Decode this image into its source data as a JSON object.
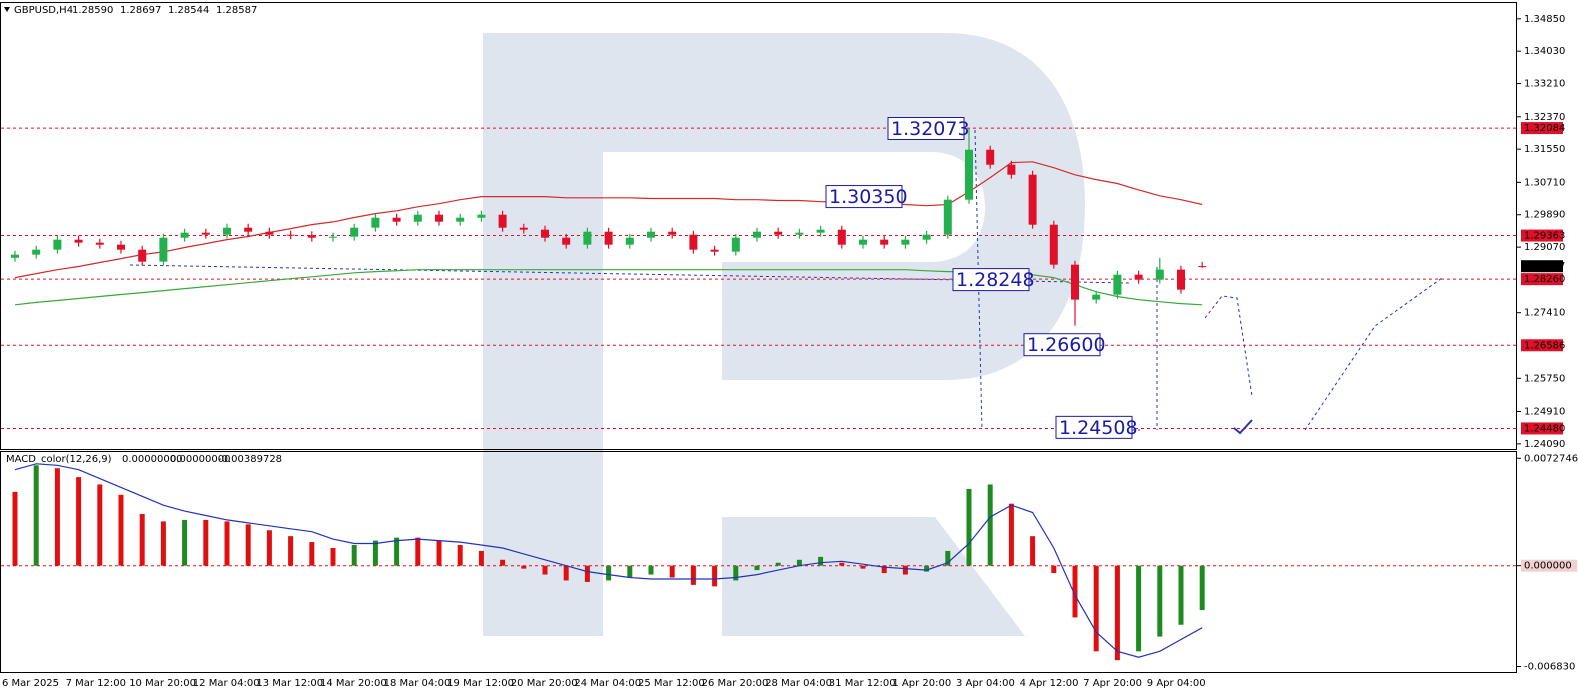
{
  "chart_data": [
    {
      "type": "candlestick",
      "title": "GBPUSD,H4",
      "header_values": [
        "1.28590",
        "1.28697",
        "1.28544",
        "1.28587"
      ],
      "categories": [
        "6 Mar 2025",
        null,
        null,
        "7 Mar 12:00",
        null,
        null,
        "10 Mar 20:00",
        null,
        null,
        "12 Mar 04:00",
        null,
        null,
        "13 Mar 12:00",
        null,
        null,
        "14 Mar 20:00",
        null,
        null,
        "18 Mar 04:00",
        null,
        null,
        "19 Mar 12:00",
        null,
        null,
        "20 Mar 20:00",
        null,
        null,
        "24 Mar 04:00",
        null,
        null,
        "25 Mar 12:00",
        null,
        null,
        "26 Mar 20:00",
        null,
        null,
        "28 Mar 04:00",
        null,
        null,
        "31 Mar 12:00",
        null,
        null,
        "1 Apr 20:00",
        null,
        null,
        "3 Apr 04:00",
        null,
        null,
        "4 Apr 12:00",
        null,
        null,
        "7 Apr 20:00",
        null,
        null,
        "9 Apr 04:00",
        null,
        null
      ],
      "open": [
        1.288,
        1.28879,
        1.29006,
        1.29259,
        1.29183,
        1.29132,
        1.29006,
        1.28702,
        1.29309,
        1.29436,
        1.29385,
        1.29562,
        1.29461,
        1.29385,
        1.2937,
        1.29309,
        1.29335,
        1.29562,
        1.29815,
        1.29714,
        1.29891,
        1.29714,
        1.29815,
        1.29891,
        1.29562,
        1.29512,
        1.29309,
        1.29132,
        1.29461,
        1.29132,
        1.29309,
        1.29461,
        1.29385,
        1.29006,
        1.28955,
        1.29309,
        1.29461,
        1.29385,
        1.29436,
        1.29512,
        1.29132,
        1.29259,
        1.29132,
        1.29259,
        1.29385,
        1.30271,
        1.31536,
        1.31156,
        1.30903,
        1.29638,
        1.28626,
        1.27741,
        1.27867,
        1.28373,
        1.28247,
        1.285,
        1.2859
      ],
      "high": [
        1.28979,
        1.29106,
        1.29359,
        1.29359,
        1.29283,
        1.29232,
        1.29106,
        1.29409,
        1.29536,
        1.29536,
        1.29662,
        1.29662,
        1.29561,
        1.29485,
        1.2947,
        1.29435,
        1.29662,
        1.29915,
        1.29915,
        1.29991,
        1.29991,
        1.29915,
        1.29991,
        1.29991,
        1.29662,
        1.29612,
        1.29409,
        1.29561,
        1.29561,
        1.29409,
        1.29561,
        1.29561,
        1.29485,
        1.29106,
        1.29409,
        1.29561,
        1.29561,
        1.29536,
        1.29612,
        1.29612,
        1.29359,
        1.29359,
        1.29359,
        1.29485,
        1.30371,
        1.32073,
        1.31636,
        1.31256,
        1.31003,
        1.29738,
        1.28726,
        1.27967,
        1.28473,
        1.28473,
        1.288,
        1.286,
        1.28697
      ],
      "low": [
        1.287,
        1.28779,
        1.28906,
        1.29083,
        1.29032,
        1.28906,
        1.28602,
        1.28602,
        1.29209,
        1.29285,
        1.29285,
        1.29361,
        1.29285,
        1.2927,
        1.29209,
        1.29209,
        1.29235,
        1.29462,
        1.29614,
        1.29614,
        1.29614,
        1.29614,
        1.29715,
        1.29462,
        1.29412,
        1.29209,
        1.29032,
        1.29032,
        1.29032,
        1.29032,
        1.29209,
        1.29285,
        1.28906,
        1.28855,
        1.28855,
        1.29209,
        1.29285,
        1.29285,
        1.29336,
        1.29032,
        1.29032,
        1.29032,
        1.29032,
        1.29159,
        1.29285,
        1.30171,
        1.31056,
        1.30803,
        1.29538,
        1.28526,
        1.27083,
        1.27641,
        1.27767,
        1.28147,
        1.28147,
        1.27894,
        1.28544
      ],
      "close": [
        1.28879,
        1.29006,
        1.29259,
        1.29183,
        1.29132,
        1.29006,
        1.28702,
        1.29309,
        1.29436,
        1.29385,
        1.29562,
        1.29461,
        1.29385,
        1.2937,
        1.29309,
        1.29335,
        1.29562,
        1.29815,
        1.29714,
        1.29891,
        1.29714,
        1.29815,
        1.29891,
        1.29562,
        1.29512,
        1.29309,
        1.29132,
        1.29461,
        1.29132,
        1.29309,
        1.29461,
        1.29385,
        1.29006,
        1.28955,
        1.29309,
        1.29461,
        1.29385,
        1.29436,
        1.29512,
        1.29132,
        1.29259,
        1.29132,
        1.29259,
        1.29385,
        1.30271,
        1.31536,
        1.31156,
        1.30903,
        1.29638,
        1.28626,
        1.27741,
        1.27867,
        1.28373,
        1.28247,
        1.285,
        1.27994,
        1.28587
      ],
      "up_color": "#22b14c",
      "down_color": "#e0102a",
      "lines": [
        {
          "color": "#d42a2a",
          "values": [
            1.283,
            1.284,
            1.285,
            1.2858,
            1.2868,
            1.2878,
            1.2888,
            1.2895,
            1.2906,
            1.2916,
            1.2926,
            1.2934,
            1.2944,
            1.2954,
            1.2964,
            1.2971,
            1.2982,
            1.2992,
            1.2999,
            1.3009,
            1.3017,
            1.3027,
            1.3035,
            1.3035,
            1.3035,
            1.3035,
            1.3032,
            1.3032,
            1.3032,
            1.3032,
            1.303,
            1.303,
            1.303,
            1.303,
            1.3027,
            1.3027,
            1.3025,
            1.3025,
            1.3022,
            1.3022,
            1.302,
            1.3017,
            1.3015,
            1.3012,
            1.3015,
            1.3047,
            1.3083,
            1.3121,
            1.3123,
            1.3108,
            1.309,
            1.3078,
            1.3068,
            1.3052,
            1.3037,
            1.3027,
            1.3015
          ]
        },
        {
          "color": "#3aa83a",
          "values": [
            1.2761,
            1.2767,
            1.2772,
            1.2777,
            1.2782,
            1.2787,
            1.2792,
            1.2797,
            1.2802,
            1.2807,
            1.2812,
            1.2817,
            1.2822,
            1.2827,
            1.2832,
            1.2837,
            1.2842,
            1.2845,
            1.2847,
            1.285,
            1.285,
            1.285,
            1.285,
            1.285,
            1.285,
            1.285,
            1.285,
            1.285,
            1.285,
            1.285,
            1.285,
            1.285,
            1.285,
            1.285,
            1.285,
            1.285,
            1.285,
            1.285,
            1.285,
            1.285,
            1.285,
            1.285,
            1.285,
            1.2847,
            1.2845,
            1.2845,
            1.2842,
            1.284,
            1.2837,
            1.283,
            1.2812,
            1.2794,
            1.2782,
            1.2774,
            1.2769,
            1.2764,
            1.2761
          ]
        }
      ],
      "ylim": [
        1.2396,
        1.3525
      ],
      "yticks": [
        {
          "value": 1.3485,
          "label": "1.34850"
        },
        {
          "value": 1.3403,
          "label": "1.34030"
        },
        {
          "value": 1.3321,
          "label": "1.33210"
        },
        {
          "value": 1.3237,
          "label": "1.32370"
        },
        {
          "value": 1.3155,
          "label": "1.31550"
        },
        {
          "value": 1.3071,
          "label": "1.30710"
        },
        {
          "value": 1.2989,
          "label": "1.29890"
        },
        {
          "value": 1.2907,
          "label": "1.29070"
        },
        {
          "value": 1.2741,
          "label": "1.27410"
        },
        {
          "value": 1.2575,
          "label": "1.25750"
        },
        {
          "value": 1.2491,
          "label": "1.24910"
        },
        {
          "value": 1.2409,
          "label": "1.24090"
        }
      ],
      "price_levels": [
        1.32084,
        1.29363,
        {
          "value": 1.2826,
          "label": "1.28260"
        },
        1.26586,
        {
          "value": 1.2448,
          "label": "1.24480"
        }
      ],
      "current_price": 1.28587,
      "level_color": "#e0102a",
      "annotations": [
        1.32073,
        {
          "value": 1.3035,
          "label": "1.30350"
        },
        1.28248,
        {
          "value": 1.266,
          "label": "1.26600"
        },
        1.24508
      ]
    },
    {
      "type": "macd",
      "title": "MACD_color(12,26,9)",
      "header_values": [
        "0.00000000",
        "0.00000000",
        "-0.00389728"
      ],
      "histogram": [
        0.005,
        0.0068,
        0.0066,
        0.006,
        0.0055,
        0.0048,
        0.0035,
        0.003,
        0.0031,
        0.0031,
        0.003,
        0.0028,
        0.0024,
        0.002,
        0.0016,
        0.0012,
        0.0014,
        0.0017,
        0.0019,
        0.0019,
        0.0017,
        0.0014,
        0.001,
        0.0004,
        -0.0002,
        -0.0006,
        -0.001,
        -0.0011,
        -0.001,
        -0.0008,
        -0.0006,
        -0.0008,
        -0.0013,
        -0.0014,
        -0.001,
        -0.0003,
        0.0002,
        0.0004,
        0.0006,
        0.0002,
        -0.0002,
        -0.0005,
        -0.0006,
        -0.0004,
        0.001,
        0.0052,
        0.0055,
        0.0042,
        0.002,
        -0.0005,
        -0.0035,
        -0.0058,
        -0.0064,
        -0.0058,
        -0.0048,
        -0.004,
        -0.003
      ],
      "signal": [
        0.0065,
        0.0069,
        0.0068,
        0.0065,
        0.0059,
        0.0053,
        0.0047,
        0.0041,
        0.0037,
        0.0034,
        0.0031,
        0.0029,
        0.0027,
        0.0025,
        0.0023,
        0.0018,
        0.0015,
        0.0015,
        0.0017,
        0.0018,
        0.0017,
        0.0016,
        0.0014,
        0.0012,
        0.0008,
        0.0004,
        0.0,
        -0.0004,
        -0.0006,
        -0.0008,
        -0.0009,
        -0.0009,
        -0.0009,
        -0.0009,
        -0.0008,
        -0.0006,
        -0.0003,
        0.0,
        0.0002,
        0.0003,
        0.0001,
        -0.0001,
        -0.0002,
        -0.0003,
        0.0002,
        0.0015,
        0.0033,
        0.0041,
        0.0036,
        0.0012,
        -0.002,
        -0.0045,
        -0.0058,
        -0.0062,
        -0.0058,
        -0.005,
        -0.0042
      ],
      "up_color": "#1f8a1f",
      "down_color": "#e01010",
      "signal_color": "#2233bb",
      "ylim": [
        -0.0072,
        0.0077
      ],
      "yticks": [
        0.0072746,
        {
          "value": 0,
          "label": "0.000000"
        },
        {
          "value": -0.00683,
          "label": "-0.006830"
        }
      ]
    }
  ]
}
